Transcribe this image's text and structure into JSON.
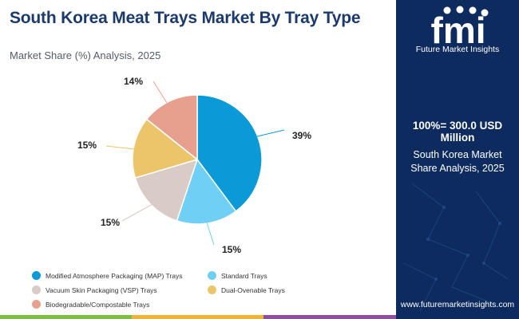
{
  "header": {
    "title": "South Korea Meat Trays Market By Tray Type",
    "subtitle": "Market Share (%) Analysis, 2025"
  },
  "sidebar": {
    "brand_mark": "fmi",
    "brand_name": "Future Market Insights",
    "total": "100%= 300.0 USD Million",
    "description": "South Korea Market Share Analysis, 2025",
    "url": "www.futuremarketinsights.com"
  },
  "colors": {
    "sidebar_bg": "#0d2b5e",
    "title": "#1b3a6b",
    "map": "#0a9ad8",
    "standard": "#6fcff4",
    "vsp": "#d9cbc6",
    "dual_ovenable": "#ecc56a",
    "biodegradable": "#e8a08e"
  },
  "chart_data": {
    "type": "pie",
    "title": "South Korea Meat Trays Market By Tray Type",
    "subtitle": "Market Share (%) Analysis, 2025",
    "unit": "%",
    "legend_position": "bottom",
    "slices": [
      {
        "label": "Modified Atmosphere Packaging (MAP) Trays",
        "value": 39,
        "display": "39%",
        "color": "#0a9ad8"
      },
      {
        "label": "Standard Trays",
        "value": 15,
        "display": "15%",
        "color": "#6fcff4"
      },
      {
        "label": "Vacuum Skin Packaging (VSP) Trays",
        "value": 15,
        "display": "15%",
        "color": "#d9cbc6"
      },
      {
        "label": "Dual-Ovenable Trays",
        "value": 15,
        "display": "15%",
        "color": "#ecc56a"
      },
      {
        "label": "Biodegradable/Compostable Trays",
        "value": 14,
        "display": "14%",
        "color": "#e8a08e"
      }
    ]
  }
}
